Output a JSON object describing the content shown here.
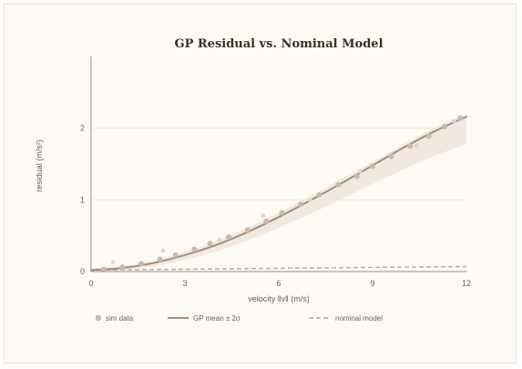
{
  "colors": {
    "background": "#fdfaf5",
    "border": "#e9dfcf",
    "gp_mean": "#a88f76",
    "gp_band": "#efe5df",
    "sim": "#c8b9ab",
    "sim_faint": "#e0d6cc",
    "nominal": "#b8a89a",
    "axis": "#9a9088",
    "grid": "#ece6df"
  },
  "chart_data": {
    "type": "line",
    "title": "GP Residual vs. Nominal Model",
    "xlabel": "velocity ‖v‖ (m/s)",
    "ylabel": "residual (m/s²)",
    "xlim": [
      0,
      12
    ],
    "ylim": [
      0,
      3.0
    ],
    "xticks": [
      "0",
      "3",
      "6",
      "9",
      "12"
    ],
    "yticks": [
      "0",
      "1",
      "2"
    ],
    "grid": "horizontal",
    "legend_position": "bottom",
    "legend": [
      "sim data",
      "GP mean ± 2σ",
      "nominal model"
    ],
    "series": [
      {
        "name": "sim data",
        "kind": "scatter",
        "x": [
          0.4,
          1.0,
          1.6,
          2.2,
          2.7,
          3.3,
          3.8,
          4.4,
          5.0,
          5.6,
          6.1,
          6.7,
          7.3,
          7.9,
          8.5,
          9.0,
          9.6,
          10.2,
          10.8,
          11.3,
          11.8
        ],
        "y": [
          0.03,
          0.06,
          0.11,
          0.17,
          0.23,
          0.31,
          0.39,
          0.48,
          0.58,
          0.7,
          0.82,
          0.94,
          1.07,
          1.21,
          1.33,
          1.47,
          1.61,
          1.75,
          1.89,
          2.02,
          2.14
        ]
      },
      {
        "name": "sim data",
        "kind": "scatter_faint",
        "x": [
          0.7,
          2.3,
          4.1,
          5.5,
          7.0,
          8.6,
          10.4,
          11.6
        ],
        "y": [
          0.13,
          0.29,
          0.44,
          0.78,
          1.0,
          1.4,
          1.76,
          2.1
        ]
      },
      {
        "name": "GP mean ± 2σ",
        "kind": "line",
        "x": [
          0,
          1,
          2,
          3,
          4,
          5,
          6,
          7,
          8,
          9,
          10,
          11,
          12
        ],
        "y": [
          0.02,
          0.05,
          0.12,
          0.23,
          0.37,
          0.55,
          0.76,
          0.99,
          1.23,
          1.48,
          1.73,
          1.96,
          2.16
        ],
        "band_upper": [
          0.04,
          0.07,
          0.15,
          0.27,
          0.42,
          0.61,
          0.82,
          1.05,
          1.29,
          1.53,
          1.78,
          2.01,
          2.2
        ],
        "band_lower": [
          0.0,
          0.02,
          0.07,
          0.16,
          0.28,
          0.43,
          0.61,
          0.8,
          1.01,
          1.22,
          1.43,
          1.62,
          1.78
        ]
      },
      {
        "name": "nominal model",
        "kind": "dashed",
        "x": [
          0,
          12
        ],
        "y": [
          0.02,
          0.07
        ]
      }
    ]
  }
}
